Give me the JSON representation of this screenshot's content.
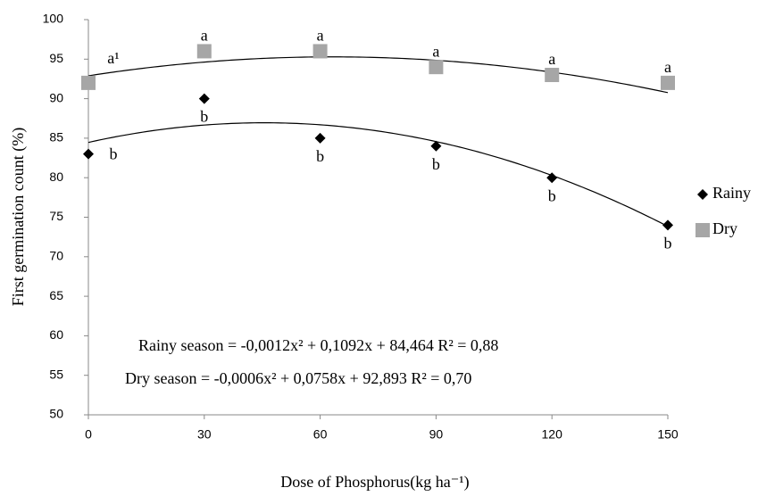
{
  "chart_data": {
    "type": "scatter",
    "x_label": "Dose of Phosphorus(kg ha⁻¹)",
    "y_label": "First germination count (%)",
    "x": [
      0,
      30,
      60,
      90,
      120,
      150
    ],
    "xlim": [
      0,
      150
    ],
    "xticks": [
      0,
      30,
      60,
      90,
      120,
      150
    ],
    "ylim": [
      50,
      100
    ],
    "yticks": [
      50,
      55,
      60,
      65,
      70,
      75,
      80,
      85,
      90,
      95,
      100
    ],
    "series": [
      {
        "name": "Rainy",
        "color": "#000000",
        "marker": "diamond",
        "values": [
          83,
          90,
          85,
          84,
          80,
          74
        ],
        "letters": [
          "b",
          "b",
          "b",
          "b",
          "b",
          "b"
        ],
        "fit": [
          -0.0012,
          0.1092,
          84.464
        ]
      },
      {
        "name": "Dry",
        "color": "#a6a6a6",
        "marker": "square",
        "values": [
          92,
          96,
          96,
          94,
          93,
          92
        ],
        "letters": [
          "a¹",
          "a",
          "a",
          "a",
          "a",
          "a"
        ],
        "fit": [
          -0.0006,
          0.0758,
          92.893
        ]
      }
    ],
    "annotations": [
      "Rainy season = -0,0012x² + 0,1092x + 84,464 R² = 0,88",
      "Dry season = -0,0006x² + 0,0758x + 92,893 R² = 0,70"
    ]
  }
}
